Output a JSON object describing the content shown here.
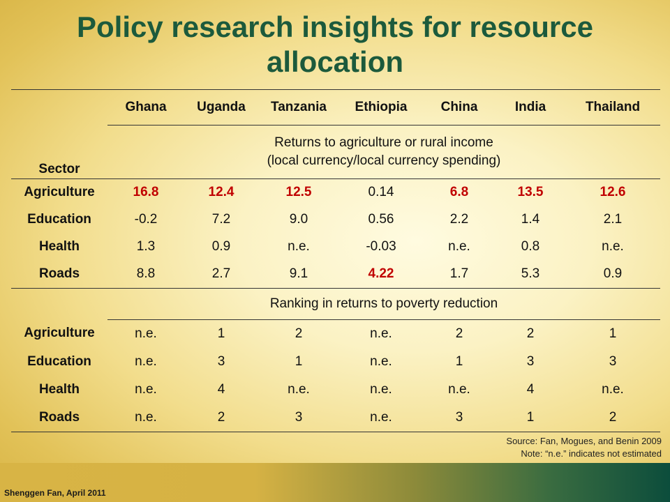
{
  "title": "Policy research insights for resource allocation",
  "table": {
    "sector_label": "Sector",
    "countries": [
      "Ghana",
      "Uganda",
      "Tanzania",
      "Ethiopia",
      "China",
      "India",
      "Thailand"
    ],
    "section1_line1": "Returns to agriculture or rural income",
    "section1_line2": "(local currency/local currency spending)",
    "returns_rows": [
      {
        "sector": "Agriculture",
        "values": [
          "16.8",
          "12.4",
          "12.5",
          "0.14",
          "6.8",
          "13.5",
          "12.6"
        ]
      },
      {
        "sector": "Education",
        "values": [
          "-0.2",
          "7.2",
          "9.0",
          "0.56",
          "2.2",
          "1.4",
          "2.1"
        ]
      },
      {
        "sector": "Health",
        "values": [
          "1.3",
          "0.9",
          "n.e.",
          "-0.03",
          "n.e.",
          "0.8",
          "n.e."
        ]
      },
      {
        "sector": "Roads",
        "values": [
          "8.8",
          "2.7",
          "9.1",
          "4.22",
          "1.7",
          "5.3",
          "0.9"
        ]
      }
    ],
    "section2_title": "Ranking in returns to poverty reduction",
    "ranking_rows": [
      {
        "sector": "Agriculture",
        "values": [
          "n.e.",
          "1",
          "2",
          "n.e.",
          "2",
          "2",
          "1"
        ]
      },
      {
        "sector": "Education",
        "values": [
          "n.e.",
          "3",
          "1",
          "n.e.",
          "1",
          "3",
          "3"
        ]
      },
      {
        "sector": "Health",
        "values": [
          "n.e.",
          "4",
          "n.e.",
          "n.e.",
          "n.e.",
          "4",
          "n.e."
        ]
      },
      {
        "sector": "Roads",
        "values": [
          "n.e.",
          "2",
          "3",
          "n.e.",
          "3",
          "1",
          "2"
        ]
      }
    ],
    "highlight_color": "#c00000"
  },
  "source_line": "Source: Fan, Mogues, and Benin 2009",
  "note_line": "Note: “n.e.” indicates not estimated",
  "footer": "Shenggen Fan, April 2011"
}
